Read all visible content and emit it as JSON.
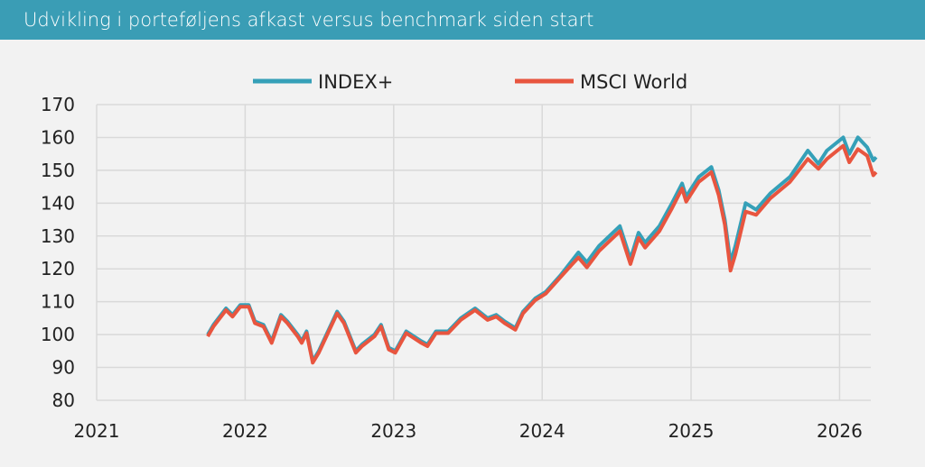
{
  "header": {
    "title": "Udvikling i porteføljens afkast versus benchmark siden start"
  },
  "colors": {
    "header_bg": "#3a9db5",
    "index_plus": "#35a0b8",
    "msci_world": "#e8553f",
    "grid": "#d9d9d9",
    "background": "#f2f2f2"
  },
  "chart_data": {
    "type": "line",
    "title": "",
    "xlabel": "",
    "ylabel": "",
    "grid": true,
    "legend": "top-center",
    "ylim": [
      80,
      170
    ],
    "yticks": [
      "80",
      "90",
      "100",
      "110",
      "120",
      "130",
      "140",
      "150",
      "160",
      "170"
    ],
    "xticks": [
      "2021",
      "2022",
      "2023",
      "2024",
      "2025",
      "2026"
    ],
    "xlim": [
      "2021-01-01",
      "2026-04-10"
    ],
    "x": [
      "2021-10-01",
      "2021-10-15",
      "2021-11-15",
      "2021-12-01",
      "2021-12-20",
      "2022-01-10",
      "2022-01-25",
      "2022-02-15",
      "2022-03-07",
      "2022-03-30",
      "2022-04-15",
      "2022-05-10",
      "2022-05-20",
      "2022-06-01",
      "2022-06-16",
      "2022-07-01",
      "2022-08-15",
      "2022-09-01",
      "2022-09-30",
      "2022-10-15",
      "2022-11-15",
      "2022-12-01",
      "2022-12-20",
      "2023-01-05",
      "2023-02-01",
      "2023-03-10",
      "2023-03-25",
      "2023-04-15",
      "2023-05-15",
      "2023-06-15",
      "2023-07-20",
      "2023-08-20",
      "2023-09-10",
      "2023-10-01",
      "2023-10-27",
      "2023-11-15",
      "2023-12-15",
      "2024-01-10",
      "2024-02-15",
      "2024-03-30",
      "2024-04-20",
      "2024-05-20",
      "2024-07-10",
      "2024-08-05",
      "2024-08-25",
      "2024-09-10",
      "2024-10-15",
      "2024-11-15",
      "2024-12-10",
      "2024-12-20",
      "2025-01-20",
      "2025-02-20",
      "2025-03-10",
      "2025-03-25",
      "2025-04-08",
      "2025-04-20",
      "2025-05-15",
      "2025-06-10",
      "2025-07-15",
      "2025-09-01",
      "2025-10-15",
      "2025-11-10",
      "2025-12-01",
      "2026-01-10",
      "2026-01-25",
      "2026-02-15",
      "2026-03-10",
      "2026-03-25",
      "2026-04-01"
    ],
    "series": [
      {
        "name": "INDEX+",
        "values": [
          100,
          103,
          108,
          106,
          109,
          109,
          104,
          103,
          98,
          106,
          104,
          100,
          98,
          101,
          92,
          95,
          107,
          104,
          95,
          97,
          100,
          103,
          96,
          95,
          101,
          98,
          97,
          101,
          101,
          105,
          108,
          105,
          106,
          104,
          102,
          107,
          111,
          113,
          118,
          125,
          122,
          127,
          133,
          123,
          131,
          128,
          133,
          140,
          146,
          142,
          148,
          151,
          144,
          135,
          122,
          127,
          140,
          138,
          143,
          148,
          156,
          152,
          156,
          160,
          155,
          160,
          157,
          153,
          154
        ]
      },
      {
        "name": "MSCI World",
        "values": [
          100,
          103,
          108,
          106,
          109,
          109,
          104,
          103,
          98,
          106,
          104,
          100,
          98,
          101,
          92,
          95,
          107,
          104,
          95,
          97,
          100,
          103,
          96,
          95,
          101,
          98,
          97,
          101,
          101,
          105,
          108,
          105,
          106,
          104,
          102,
          107,
          111,
          113,
          118,
          124,
          121,
          126,
          132,
          122,
          130,
          127,
          132,
          139,
          145,
          141,
          147,
          150,
          143,
          134,
          120,
          125,
          138,
          137,
          142,
          147,
          154,
          151,
          154,
          158,
          153,
          157,
          155,
          149,
          150
        ]
      }
    ]
  }
}
